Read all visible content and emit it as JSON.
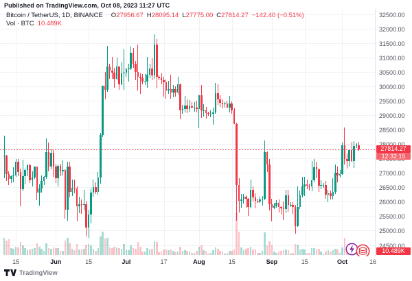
{
  "header": {
    "published_line": "Published on TradingView.com, Oct 08, 2023 11:27 UTC"
  },
  "legend": {
    "symbol_line": "Bitcoin / TetherUS, 1D, BINANCE",
    "o_label": "O",
    "o_value": "27956.67",
    "h_label": "H",
    "h_value": "28095.14",
    "l_label": "L",
    "l_value": "27775.00",
    "c_label": "C",
    "c_value": "27814.27",
    "change": "−142.40 (−0.51%)",
    "volume_label": "Vol · BTC",
    "volume_value": "10.489K"
  },
  "price_axis": {
    "last_price_badge": "27814.27",
    "countdown": "12:32:15",
    "volume_badge": "10.489K"
  },
  "footer": {
    "brand": "TradingView"
  },
  "icons": [
    "tradingview-logo-icon",
    "sticker-lightning-icon",
    "sticker-coins-icon"
  ],
  "colors": {
    "up": "#089981",
    "down": "#f23645",
    "volume_up": "rgba(8,153,129,0.35)",
    "volume_down": "rgba(242,54,69,0.30)",
    "last_price_line": "#f23645",
    "price_badge_bg": "#f23645",
    "countdown_bg": "#f5646d",
    "volume_badge_bg": "#f23645",
    "grid": "#f0f2f6",
    "axis_text": "#50545e",
    "dark_text": "#131722"
  },
  "chart_data": {
    "type": "candlestick",
    "title": "Bitcoin / TetherUS, 1D, BINANCE",
    "symbol": "BTCUSDT",
    "interval": "1D",
    "exchange": "BINANCE",
    "start_date": "2023-05-10",
    "last_price": 27814.27,
    "volume_unit": "K BTC",
    "price_scale": {
      "min": 24500,
      "max": 32500,
      "step": 500
    },
    "price_labels": [
      "32500.00",
      "32000.00",
      "31500.00",
      "31000.00",
      "30500.00",
      "30000.00",
      "29500.00",
      "29000.00",
      "28500.00",
      "28000.00",
      "27500.00",
      "27000.00",
      "26500.00",
      "26000.00",
      "25500.00",
      "25000.00",
      "24500.00"
    ],
    "time_ticks": [
      {
        "label": "15",
        "idx": 5,
        "bold": false
      },
      {
        "label": "Jun",
        "idx": 22,
        "bold": true
      },
      {
        "label": "15",
        "idx": 36,
        "bold": false
      },
      {
        "label": "Jul",
        "idx": 52,
        "bold": true
      },
      {
        "label": "17",
        "idx": 68,
        "bold": false
      },
      {
        "label": "Aug",
        "idx": 83,
        "bold": true
      },
      {
        "label": "15",
        "idx": 97,
        "bold": false
      },
      {
        "label": "Sep",
        "idx": 114,
        "bold": true
      },
      {
        "label": "15",
        "idx": 128,
        "bold": false
      },
      {
        "label": "Oct",
        "idx": 144,
        "bold": true
      },
      {
        "label": "16",
        "idx": 159,
        "bold": false
      }
    ],
    "candles_format": [
      "open",
      "high",
      "low",
      "close",
      "volume_k_btc"
    ],
    "candles": [
      [
        27600,
        28290,
        26820,
        27620,
        44
      ],
      [
        27620,
        27640,
        26730,
        26980,
        38
      ],
      [
        26980,
        27070,
        26600,
        26800,
        40
      ],
      [
        26800,
        26930,
        26650,
        26905,
        18
      ],
      [
        26905,
        27200,
        26680,
        26930,
        16
      ],
      [
        26930,
        27500,
        26870,
        27400,
        22
      ],
      [
        27400,
        27480,
        26900,
        27030,
        20
      ],
      [
        27030,
        27170,
        25850,
        26450,
        34
      ],
      [
        26450,
        27470,
        26380,
        26890,
        25
      ],
      [
        26890,
        27150,
        26620,
        27120,
        17
      ],
      [
        27120,
        27300,
        26900,
        27280,
        12
      ],
      [
        27280,
        27320,
        26650,
        26760,
        14
      ],
      [
        26760,
        27060,
        26540,
        26850,
        16
      ],
      [
        26850,
        27230,
        26800,
        27230,
        18
      ],
      [
        27230,
        27240,
        26070,
        26330,
        30
      ],
      [
        26330,
        26620,
        25870,
        26480,
        22
      ],
      [
        26480,
        26920,
        26330,
        26720,
        16
      ],
      [
        26720,
        26890,
        26580,
        26870,
        10
      ],
      [
        26870,
        28200,
        26800,
        27740,
        30
      ],
      [
        27740,
        28050,
        27060,
        27220,
        18
      ],
      [
        27220,
        27840,
        27130,
        27700,
        16
      ],
      [
        27700,
        27830,
        26880,
        27220,
        20
      ],
      [
        27220,
        27330,
        26670,
        26820,
        18
      ],
      [
        26820,
        27310,
        26540,
        27250,
        17
      ],
      [
        27250,
        27330,
        26900,
        27070,
        10
      ],
      [
        27070,
        27450,
        26930,
        27120,
        10
      ],
      [
        27120,
        27130,
        25420,
        25740,
        38
      ],
      [
        25740,
        27390,
        25350,
        27240,
        44
      ],
      [
        27240,
        27400,
        26150,
        26340,
        30
      ],
      [
        26340,
        26780,
        26220,
        26500,
        16
      ],
      [
        26500,
        26780,
        26300,
        26480,
        13
      ],
      [
        26480,
        26540,
        25330,
        25850,
        28
      ],
      [
        25850,
        26180,
        25620,
        25930,
        15
      ],
      [
        25930,
        26090,
        25600,
        25900,
        14
      ],
      [
        25900,
        26420,
        25700,
        25930,
        16
      ],
      [
        25930,
        26050,
        24800,
        25120,
        26
      ],
      [
        25120,
        25740,
        24750,
        25580,
        28
      ],
      [
        25580,
        26470,
        25250,
        26330,
        24
      ],
      [
        26330,
        26770,
        26180,
        26510,
        16
      ],
      [
        26510,
        26690,
        26270,
        26340,
        11
      ],
      [
        26340,
        27030,
        26260,
        26850,
        18
      ],
      [
        26850,
        28400,
        26640,
        28320,
        48
      ],
      [
        28320,
        30040,
        28260,
        30020,
        60
      ],
      [
        30020,
        30500,
        29560,
        29890,
        42
      ],
      [
        29890,
        31410,
        29810,
        30690,
        44
      ],
      [
        30690,
        30800,
        30260,
        30550,
        20
      ],
      [
        30550,
        31040,
        30280,
        30480,
        18
      ],
      [
        30480,
        30650,
        29950,
        30270,
        22
      ],
      [
        30270,
        31010,
        30220,
        30690,
        20
      ],
      [
        30690,
        30700,
        29900,
        30080,
        18
      ],
      [
        30080,
        30840,
        30050,
        30450,
        16
      ],
      [
        30450,
        31280,
        29900,
        30480,
        28
      ],
      [
        30480,
        30660,
        30330,
        30590,
        12
      ],
      [
        30590,
        30780,
        30170,
        30620,
        12
      ],
      [
        30620,
        31380,
        30580,
        31160,
        24
      ],
      [
        31160,
        31330,
        30650,
        30780,
        18
      ],
      [
        30780,
        30880,
        30220,
        30510,
        16
      ],
      [
        30510,
        31460,
        29870,
        30340,
        34
      ],
      [
        30340,
        30450,
        29750,
        30290,
        22
      ],
      [
        30290,
        30440,
        30070,
        30170,
        9
      ],
      [
        30170,
        30440,
        30060,
        30170,
        9
      ],
      [
        30170,
        31040,
        29960,
        30420,
        18
      ],
      [
        30420,
        30800,
        30300,
        30620,
        14
      ],
      [
        30620,
        30980,
        30210,
        30380,
        16
      ],
      [
        30380,
        31820,
        30260,
        31460,
        36
      ],
      [
        31460,
        31640,
        29930,
        30330,
        34
      ],
      [
        30330,
        30380,
        30220,
        30290,
        7
      ],
      [
        30290,
        30450,
        30080,
        30230,
        8
      ],
      [
        30230,
        30340,
        29660,
        30140,
        14
      ],
      [
        30140,
        30240,
        29570,
        29860,
        14
      ],
      [
        29860,
        30190,
        29750,
        29910,
        12
      ],
      [
        29910,
        30420,
        29580,
        29800,
        14
      ],
      [
        29800,
        30060,
        29620,
        29910,
        10
      ],
      [
        29910,
        30010,
        29660,
        29790,
        7
      ],
      [
        29790,
        30340,
        29720,
        30080,
        9
      ],
      [
        30080,
        30100,
        28860,
        29180,
        22
      ],
      [
        29180,
        29370,
        29050,
        29230,
        10
      ],
      [
        29230,
        29680,
        29100,
        29350,
        12
      ],
      [
        29350,
        29560,
        29080,
        29220,
        10
      ],
      [
        29220,
        29530,
        29130,
        29320,
        8
      ],
      [
        29320,
        29450,
        29250,
        29280,
        5
      ],
      [
        29280,
        29450,
        29130,
        29280,
        6
      ],
      [
        29280,
        29500,
        29110,
        29230,
        10
      ],
      [
        29230,
        29720,
        28560,
        29710,
        22
      ],
      [
        29710,
        30050,
        28920,
        29170,
        24
      ],
      [
        29170,
        29390,
        28960,
        29180,
        12
      ],
      [
        29180,
        29290,
        28890,
        29080,
        10
      ],
      [
        29080,
        29120,
        28980,
        29050,
        4
      ],
      [
        29050,
        29180,
        28950,
        29050,
        5
      ],
      [
        29050,
        29270,
        28680,
        29100,
        12
      ],
      [
        29100,
        30130,
        29060,
        29770,
        20
      ],
      [
        29770,
        30090,
        29370,
        29560,
        16
      ],
      [
        29560,
        29710,
        29300,
        29430,
        10
      ],
      [
        29430,
        29550,
        29250,
        29400,
        8
      ],
      [
        29400,
        29450,
        29260,
        29410,
        4
      ],
      [
        29410,
        29500,
        29240,
        29280,
        5
      ],
      [
        29280,
        29680,
        29100,
        29410,
        10
      ],
      [
        29410,
        29480,
        29060,
        29170,
        10
      ],
      [
        29170,
        29240,
        28700,
        28700,
        14
      ],
      [
        28700,
        28760,
        25350,
        26600,
        110
      ],
      [
        26600,
        26820,
        25650,
        26050,
        60
      ],
      [
        26050,
        26270,
        25800,
        26090,
        20
      ],
      [
        26090,
        26280,
        25950,
        26190,
        12
      ],
      [
        26190,
        26240,
        25800,
        26120,
        16
      ],
      [
        26120,
        26140,
        25510,
        25840,
        18
      ],
      [
        25840,
        26790,
        25790,
        26430,
        22
      ],
      [
        26430,
        26550,
        26020,
        26160,
        14
      ],
      [
        26160,
        26300,
        25780,
        26050,
        14
      ],
      [
        26050,
        26110,
        25960,
        26010,
        5
      ],
      [
        26010,
        26180,
        25970,
        26090,
        5
      ],
      [
        26090,
        26220,
        25880,
        26120,
        10
      ],
      [
        26120,
        28140,
        26060,
        27720,
        58
      ],
      [
        27720,
        27750,
        27040,
        27300,
        24
      ],
      [
        27300,
        27480,
        25700,
        25930,
        36
      ],
      [
        25930,
        26120,
        25330,
        25800,
        26
      ],
      [
        25800,
        25970,
        25750,
        25870,
        8
      ],
      [
        25870,
        26070,
        25810,
        25970,
        6
      ],
      [
        25970,
        26090,
        25650,
        25820,
        8
      ],
      [
        25820,
        25860,
        25570,
        25780,
        10
      ],
      [
        25780,
        26030,
        25390,
        25750,
        12
      ],
      [
        25750,
        26420,
        25610,
        26240,
        14
      ],
      [
        26240,
        26430,
        25660,
        25900,
        12
      ],
      [
        25900,
        25990,
        25830,
        25910,
        4
      ],
      [
        25910,
        26000,
        25590,
        25840,
        6
      ],
      [
        25840,
        25890,
        24900,
        25160,
        28
      ],
      [
        25160,
        26550,
        25130,
        25840,
        26
      ],
      [
        25840,
        26400,
        25760,
        26230,
        14
      ],
      [
        26230,
        26880,
        26150,
        26530,
        16
      ],
      [
        26530,
        26870,
        26220,
        26610,
        14
      ],
      [
        26610,
        26780,
        26450,
        26570,
        6
      ],
      [
        26570,
        26640,
        26400,
        26530,
        5
      ],
      [
        26530,
        27430,
        26380,
        26760,
        18
      ],
      [
        26760,
        27490,
        26680,
        27210,
        18
      ],
      [
        27210,
        27390,
        26830,
        27130,
        14
      ],
      [
        27130,
        27150,
        26340,
        26570,
        16
      ],
      [
        26570,
        26750,
        26450,
        26580,
        8
      ],
      [
        26580,
        26650,
        26500,
        26580,
        4
      ],
      [
        26580,
        26730,
        26120,
        26250,
        8
      ],
      [
        26250,
        26430,
        25990,
        26300,
        12
      ],
      [
        26300,
        26390,
        26090,
        26220,
        8
      ],
      [
        26220,
        26820,
        26100,
        26360,
        12
      ],
      [
        26360,
        27300,
        26270,
        27020,
        16
      ],
      [
        27020,
        27230,
        26690,
        26910,
        14
      ],
      [
        26910,
        27100,
        26850,
        26960,
        6
      ],
      [
        26960,
        28050,
        26940,
        27970,
        20
      ],
      [
        27970,
        28590,
        27290,
        27500,
        44
      ],
      [
        27500,
        27670,
        27150,
        27430,
        18
      ],
      [
        27430,
        27830,
        27230,
        27800,
        14
      ],
      [
        27800,
        28090,
        27370,
        27410,
        18
      ],
      [
        27410,
        28110,
        27190,
        27950,
        20
      ],
      [
        27950,
        28030,
        27870,
        27960,
        8
      ],
      [
        27956.67,
        28095.14,
        27775.0,
        27814.27,
        10.489
      ]
    ]
  }
}
